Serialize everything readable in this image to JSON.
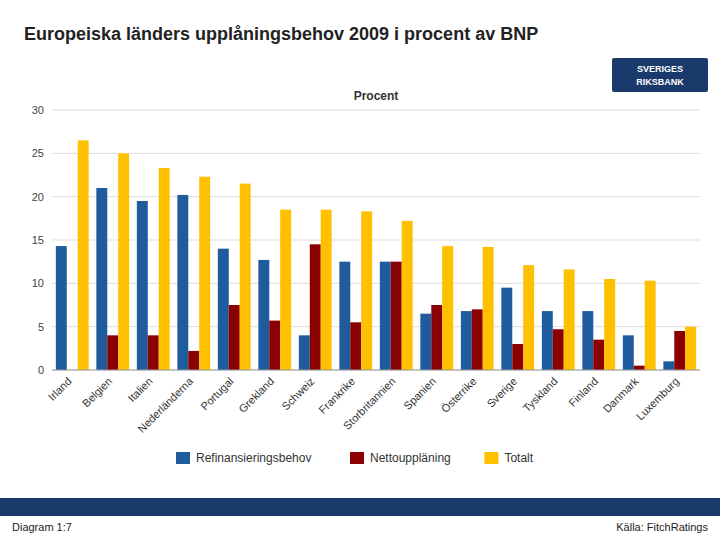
{
  "chart_data": {
    "type": "bar",
    "title": "Europeiska länders upplåningsbehov 2009 i procent av BNP",
    "subtitle": "Procent",
    "categories": [
      "Irland",
      "Belgien",
      "Italien",
      "Nederländerna",
      "Portugal",
      "Grekland",
      "Schweiz",
      "Frankrike",
      "Storbritannien",
      "Spanien",
      "Österrike",
      "Sverige",
      "Tyskland",
      "Finland",
      "Danmark",
      "Luxemburg"
    ],
    "series": [
      {
        "name": "Refinansieringsbehov",
        "color": "#1F5C9E",
        "values": [
          14.3,
          21.0,
          19.5,
          20.2,
          14.0,
          12.7,
          4.0,
          12.5,
          12.5,
          6.5,
          6.8,
          9.5,
          6.8,
          6.8,
          4.0,
          1.0
        ]
      },
      {
        "name": "Nettouppläning",
        "color": "#8B0000",
        "values": [
          0,
          4.0,
          4.0,
          2.2,
          7.5,
          5.7,
          14.5,
          5.5,
          12.5,
          7.5,
          7.0,
          3.0,
          4.7,
          3.5,
          0.5,
          4.5
        ]
      },
      {
        "name": "Totalt",
        "color": "#FFC000",
        "values": [
          26.5,
          25.0,
          23.3,
          22.3,
          21.5,
          18.5,
          18.5,
          18.3,
          17.2,
          14.3,
          14.2,
          12.1,
          11.6,
          10.5,
          10.3,
          5.0
        ]
      }
    ],
    "ylim": [
      0,
      30
    ],
    "yticks": [
      0,
      5,
      10,
      15,
      20,
      25,
      30
    ],
    "grid": true,
    "legend": "bottom",
    "annotations": [
      "Diagram 1:7",
      "Källa: FitchRatings",
      "SVERIGES",
      "RIKSBANK"
    ]
  }
}
